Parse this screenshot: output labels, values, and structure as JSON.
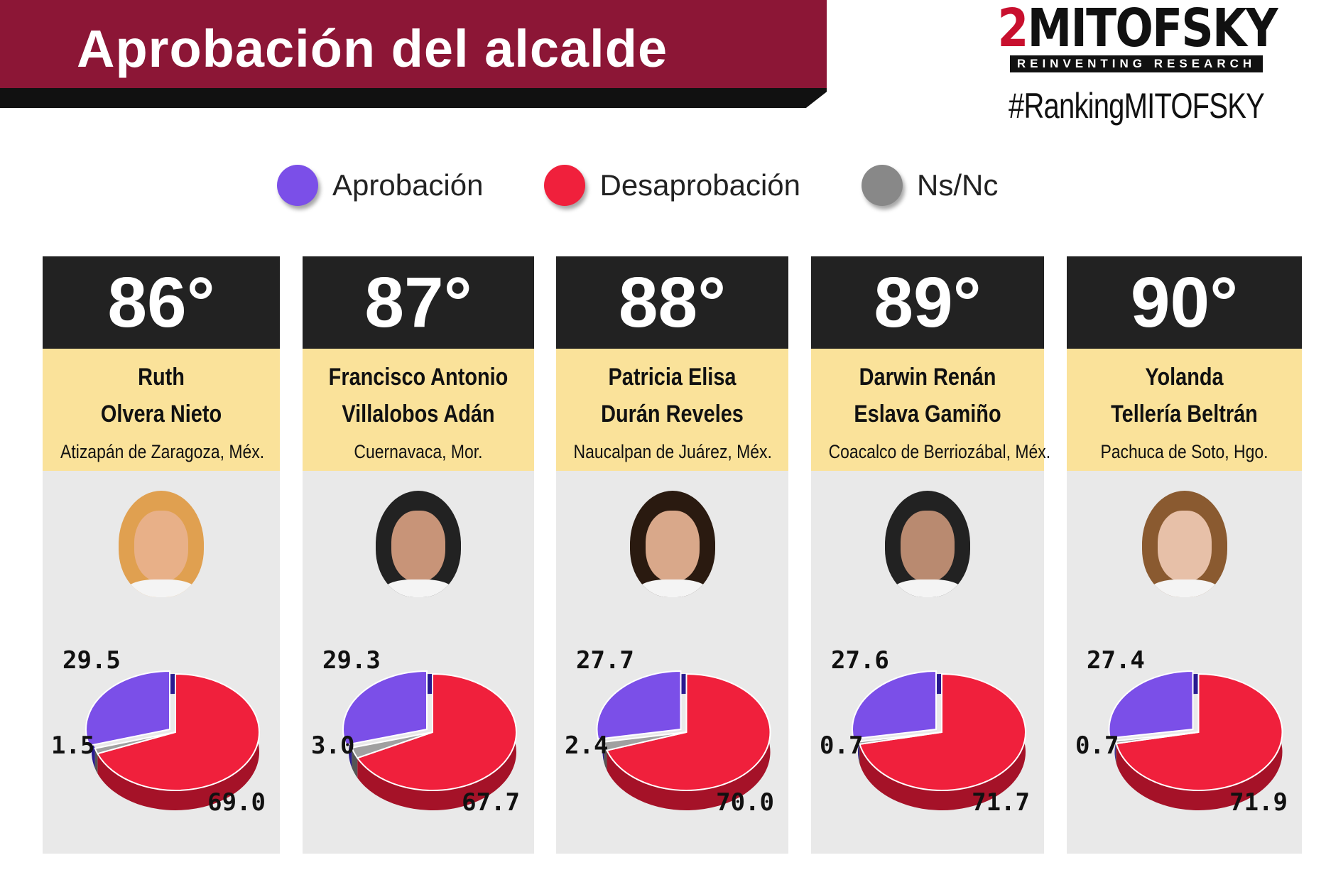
{
  "title": "Aprobación del alcalde",
  "logo": {
    "name": "MITOFSKY",
    "tagline": "REINVENTING RESEARCH",
    "hashtag": "#RankingMITOFSKY"
  },
  "legend": [
    {
      "label": "Aprobación",
      "color": "#7b4fe8"
    },
    {
      "label": "Desaprobación",
      "color": "#f0203c"
    },
    {
      "label": "Ns/Nc",
      "color": "#888888"
    }
  ],
  "chart_data": {
    "type": "pie",
    "title": "Aprobación del alcalde",
    "series_names": [
      "Aprobación",
      "Desaprobación",
      "Ns/Nc"
    ],
    "panels": [
      {
        "rank": "86°",
        "name1": "Ruth",
        "name2": "Olvera Nieto",
        "city": "Atizapán de Zaragoza, Méx.",
        "values": [
          29.5,
          69.0,
          1.5
        ],
        "labels": [
          "29.5",
          "69.0",
          "1.5"
        ]
      },
      {
        "rank": "87°",
        "name1": "Francisco Antonio",
        "name2": "Villalobos Adán",
        "city": "Cuernavaca, Mor.",
        "values": [
          29.3,
          67.7,
          3.0
        ],
        "labels": [
          "29.3",
          "67.7",
          "3.0"
        ]
      },
      {
        "rank": "88°",
        "name1": "Patricia Elisa",
        "name2": "Durán Reveles",
        "city": "Naucalpan de Juárez, Méx.",
        "values": [
          27.7,
          70.0,
          2.4
        ],
        "labels": [
          "27.7",
          "70.0",
          "2.4"
        ]
      },
      {
        "rank": "89°",
        "name1": "Darwin Renán",
        "name2": "Eslava Gamiño",
        "city": "Coacalco de Berriozábal, Méx.",
        "values": [
          27.6,
          71.7,
          0.7
        ],
        "labels": [
          "27.6",
          "71.7",
          "0.7"
        ]
      },
      {
        "rank": "90°",
        "name1": "Yolanda",
        "name2": "Tellería Beltrán",
        "city": "Pachuca de Soto, Hgo.",
        "values": [
          27.4,
          71.9,
          0.7
        ],
        "labels": [
          "27.4",
          "71.9",
          "0.7"
        ]
      }
    ]
  }
}
